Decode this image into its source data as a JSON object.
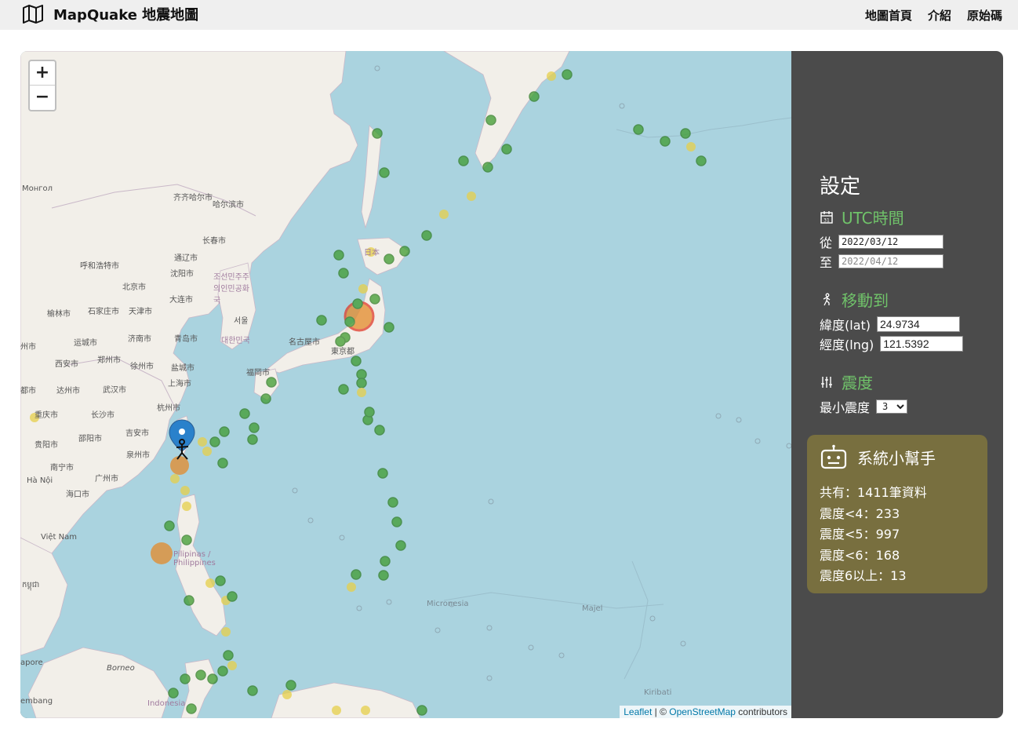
{
  "nav": {
    "brand_title": "MapQuake 地震地圖",
    "links": [
      "地圖首頁",
      "介紹",
      "原始碼"
    ]
  },
  "map": {
    "zoom_in": "+",
    "zoom_out": "−",
    "attribution": {
      "leaflet": "Leaflet",
      "sep": " | © ",
      "osm": "OpenStreetMap",
      "suffix": " contributors"
    },
    "labels": {
      "mongol": "Монгол",
      "qiqihar": "齐齐哈尔市",
      "harbin": "哈尔滨市",
      "changchun": "长春市",
      "hohhot": "呼和浩特市",
      "tonghua": "通辽市",
      "shenyang": "沈阳市",
      "beijing": "北京市",
      "tianjin": "天津市",
      "dalian": "大连市",
      "yulin": "榆林市",
      "shijiazhuang": "石家庄市",
      "jinan": "济南市",
      "qingdao": "青岛市",
      "taiyuan": "运城市",
      "zhengzhou": "郑州市",
      "xian": "西安市",
      "xuzhou": "徐州市",
      "yancheng": "盐城市",
      "dazhou": "达州市",
      "wuhan": "武汉市",
      "shanghai": "上海市",
      "hangzhou": "杭州市",
      "chongqing": "重庆市",
      "changsha": "长沙市",
      "guiyang": "贵阳市",
      "shaoyang": "邵阳市",
      "jian": "吉安市",
      "quanzhou": "泉州市",
      "nanning": "南宁市",
      "guangzhou": "广州市",
      "haikou": "海口市",
      "hanoi": "Hà Nội",
      "vietnam": "Việt Nam",
      "north_korea": "조선민주주의인민공화국",
      "seoul": "서울",
      "korea": "대한민국",
      "fukuoka": "福岡市",
      "nagoya": "名古屋市",
      "tokyo": "東京都",
      "japan": "日本",
      "philippines": "Pilipinas / Philippines",
      "micronesia": "Micronesia",
      "majel": "Majel",
      "kiribati": "Kiribati",
      "borneo": "Borneo",
      "indonesia": "Indonesia",
      "apore": "apore",
      "embang": "embang",
      "cambodia": "កម្ពុជា",
      "dushi": "都市",
      "zhoushi": "州市"
    }
  },
  "settings": {
    "title": "設定",
    "utc": {
      "heading": "UTC時間",
      "from_label": "從",
      "to_label": "至",
      "from_value": "2022/03/12",
      "to_value": "2022/04/12"
    },
    "move": {
      "heading": "移動到",
      "lat_label": "緯度(lat)",
      "lng_label": "經度(lng)",
      "lat_value": "24.9734",
      "lng_value": "121.5392"
    },
    "magnitude": {
      "heading": "震度",
      "min_label": "最小震度",
      "min_value": "3"
    }
  },
  "helper": {
    "title": "系統小幫手",
    "lines": [
      "共有：1411筆資料",
      "震度<4：233",
      "震度<5：997",
      "震度<6：168",
      "震度6以上：13"
    ]
  },
  "colors": {
    "sea": "#aad3df",
    "land": "#f2efe9",
    "green_quake": "#3e9c2f",
    "yellow_quake": "#e6cf4a",
    "orange_quake": "#e48a2a",
    "red_quake": "#e03a2a",
    "accent_green": "#70c36a",
    "helper_bg": "#786f3f"
  }
}
